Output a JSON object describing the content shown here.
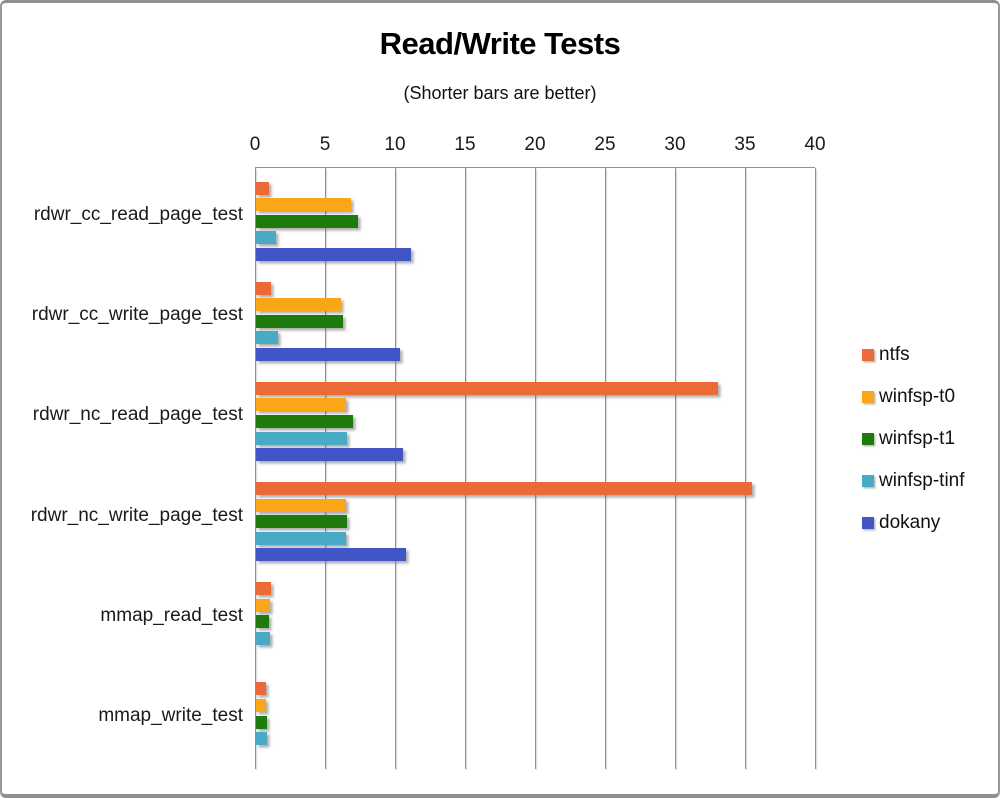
{
  "header": {
    "title": "Read/Write Tests",
    "subtitle": "(Shorter bars are better)"
  },
  "chart_data": {
    "type": "bar",
    "orientation": "horizontal",
    "title": "Read/Write Tests",
    "subtitle": "(Shorter bars are better)",
    "xlabel": "",
    "ylabel": "",
    "xlim": [
      0,
      40
    ],
    "xticks": [
      0,
      5,
      10,
      15,
      20,
      25,
      30,
      35,
      40
    ],
    "grid": true,
    "axis_color": "#8f8f8f",
    "legend_position": "right",
    "categories": [
      "rdwr_cc_read_page_test",
      "rdwr_cc_write_page_test",
      "rdwr_nc_read_page_test",
      "rdwr_nc_write_page_test",
      "mmap_read_test",
      "mmap_write_test"
    ],
    "series": [
      {
        "name": "ntfs",
        "color": "#EC6A38",
        "values": [
          0.9,
          1.1,
          33.0,
          35.4,
          1.1,
          0.7
        ]
      },
      {
        "name": "winfsp-t0",
        "color": "#FAA619",
        "values": [
          6.8,
          6.1,
          6.4,
          6.4,
          1.0,
          0.7
        ]
      },
      {
        "name": "winfsp-t1",
        "color": "#1C7B0C",
        "values": [
          7.3,
          6.2,
          6.9,
          6.5,
          0.95,
          0.75
        ]
      },
      {
        "name": "winfsp-tinf",
        "color": "#48AAC4",
        "values": [
          1.4,
          1.6,
          6.5,
          6.4,
          1.0,
          0.8
        ]
      },
      {
        "name": "dokany",
        "color": "#4255C6",
        "values": [
          11.1,
          10.3,
          10.5,
          10.7,
          0,
          0
        ]
      }
    ]
  }
}
